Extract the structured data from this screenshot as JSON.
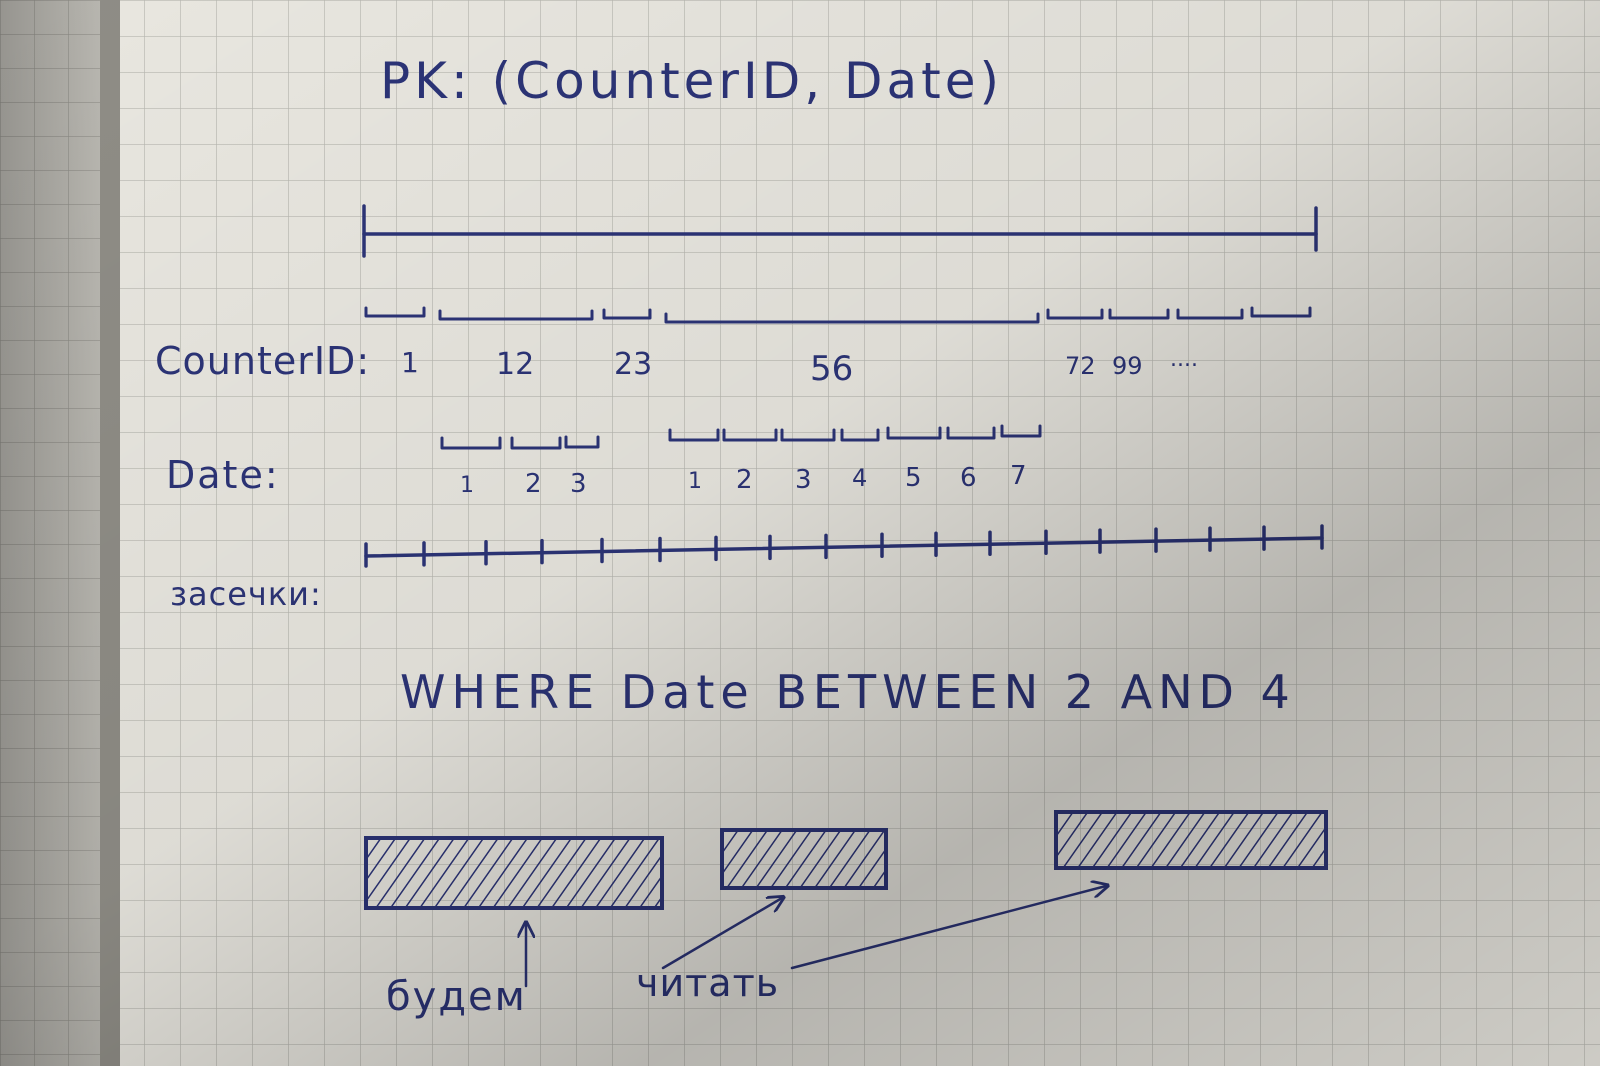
{
  "diagram": {
    "title": "PK: (CounterID, Date)",
    "rows": {
      "counter_label": "CounterID:",
      "date_label": "Date:",
      "marks_label": "засечки:"
    },
    "counter_values": [
      "1",
      "12",
      "23",
      "56",
      "72",
      "99",
      "...."
    ],
    "date_groups": [
      [
        "1",
        "2",
        "3"
      ],
      [
        "1",
        "2",
        "3",
        "4",
        "5",
        "6",
        "7"
      ]
    ],
    "query": "WHERE Date BETWEEN 2 AND 4",
    "annotation": {
      "word1": "будем",
      "word2": "читать"
    },
    "colors": {
      "ink": "#2c3477",
      "paper": "#e9e7e0",
      "grid": "#b4b4ad",
      "binding": "#a7a59d"
    }
  }
}
